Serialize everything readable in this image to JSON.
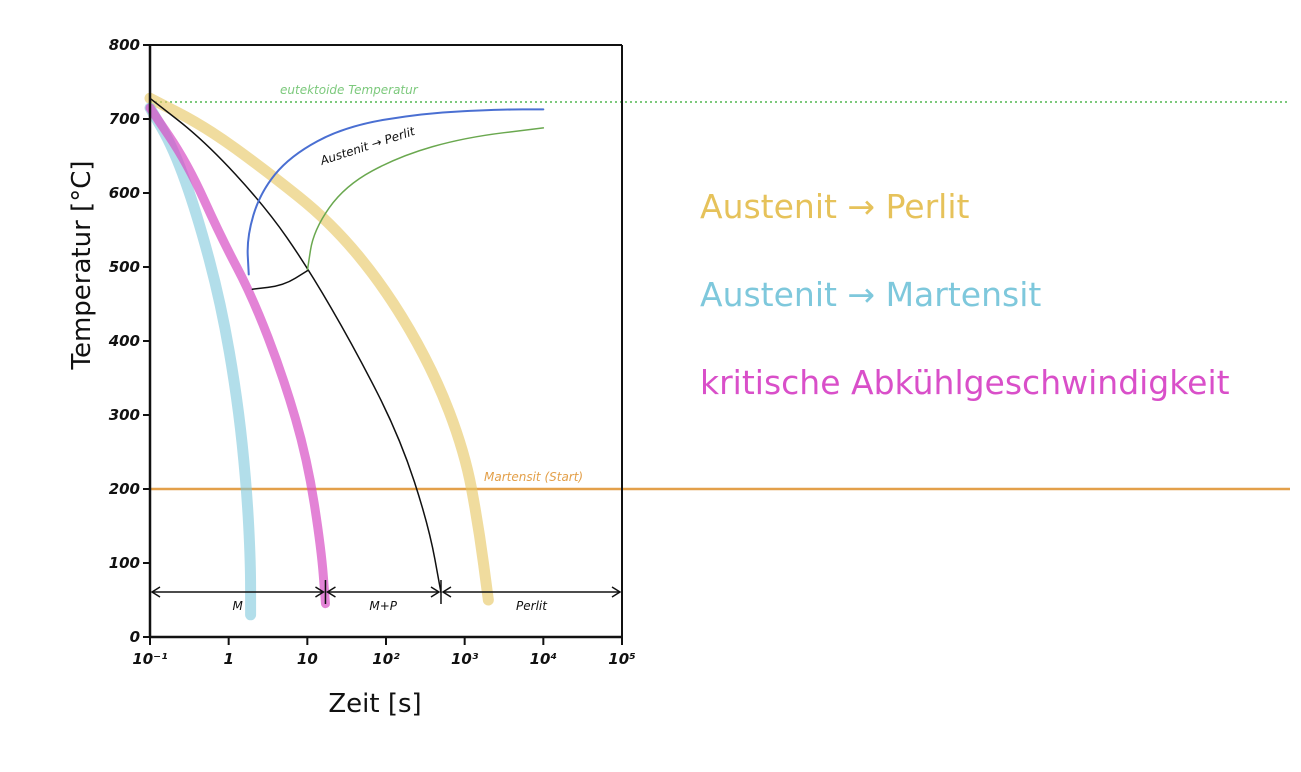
{
  "chart_data": {
    "type": "line",
    "xscale": "log",
    "xlim": [
      "10^-1",
      "10^5"
    ],
    "ylim": [
      0,
      800
    ],
    "xlabel": "Zeit [s]",
    "ylabel": "Temperatur [°C]",
    "x_ticks": [
      {
        "value": 0.1,
        "label": "10⁻¹"
      },
      {
        "value": 1,
        "label": "1"
      },
      {
        "value": 10,
        "label": "10"
      },
      {
        "value": 100,
        "label": "10²"
      },
      {
        "value": 1000,
        "label": "10³"
      },
      {
        "value": 10000,
        "label": "10⁴"
      },
      {
        "value": 100000,
        "label": "10⁵"
      }
    ],
    "y_ticks": [
      {
        "value": 0,
        "label": "0"
      },
      {
        "value": 100,
        "label": "100"
      },
      {
        "value": 200,
        "label": "200"
      },
      {
        "value": 300,
        "label": "300"
      },
      {
        "value": 400,
        "label": "400"
      },
      {
        "value": 500,
        "label": "500"
      },
      {
        "value": 600,
        "label": "600"
      },
      {
        "value": 700,
        "label": "700"
      },
      {
        "value": 800,
        "label": "800"
      }
    ],
    "reference_lines": [
      {
        "label": "eutektoide Temperatur",
        "y": 723,
        "color": "#7cc97c",
        "style": "dotted"
      },
      {
        "label": "Martensit (Start)",
        "y": 200,
        "color": "#e3a04a",
        "style": "solid"
      }
    ],
    "series": [
      {
        "color": "#e8c96a",
        "width": 11,
        "opacity": 0.65,
        "points": [
          [
            0.1,
            728
          ],
          [
            0.5,
            690
          ],
          [
            3,
            630
          ],
          [
            20,
            560
          ],
          [
            100,
            470
          ],
          [
            400,
            360
          ],
          [
            1000,
            250
          ],
          [
            1500,
            150
          ],
          [
            2000,
            50
          ]
        ]
      },
      {
        "color": "#7ec8dc",
        "width": 11,
        "opacity": 0.6,
        "points": [
          [
            0.1,
            715
          ],
          [
            0.2,
            660
          ],
          [
            0.4,
            570
          ],
          [
            0.8,
            450
          ],
          [
            1.3,
            320
          ],
          [
            1.7,
            200
          ],
          [
            1.9,
            100
          ],
          [
            1.9,
            30
          ]
        ]
      },
      {
        "color": "#d74fc4",
        "width": 9,
        "opacity": 0.7,
        "points": [
          [
            0.1,
            715
          ],
          [
            0.3,
            640
          ],
          [
            0.8,
            540
          ],
          [
            2,
            460
          ],
          [
            5,
            350
          ],
          [
            10,
            240
          ],
          [
            15,
            120
          ],
          [
            17,
            45
          ]
        ]
      },
      {
        "color": "#111111",
        "width": 1.5,
        "opacity": 1,
        "points": [
          [
            0.1,
            728
          ],
          [
            0.5,
            670
          ],
          [
            3,
            580
          ],
          [
            10,
            500
          ],
          [
            40,
            390
          ],
          [
            150,
            270
          ],
          [
            350,
            150
          ],
          [
            500,
            60
          ]
        ]
      },
      {
        "color": "#4a6fd2",
        "width": 2,
        "opacity": 1,
        "points": [
          [
            1.8,
            490
          ],
          [
            1.7,
            540
          ],
          [
            2.5,
            600
          ],
          [
            6,
            650
          ],
          [
            30,
            690
          ],
          [
            300,
            708
          ],
          [
            3000,
            713
          ],
          [
            10000,
            713
          ]
        ]
      },
      {
        "color": "#6aa84f",
        "width": 1.5,
        "opacity": 1,
        "points": [
          [
            10,
            495
          ],
          [
            12,
            550
          ],
          [
            30,
            610
          ],
          [
            150,
            650
          ],
          [
            1000,
            675
          ],
          [
            10000,
            688
          ]
        ]
      },
      {
        "color": "#111111",
        "width": 1.5,
        "opacity": 1,
        "points": [
          [
            2,
            470
          ],
          [
            5,
            475
          ],
          [
            10,
            495
          ]
        ]
      }
    ],
    "regions": [
      {
        "label": "M",
        "from": 0.1,
        "to": 17
      },
      {
        "label": "M+P",
        "from": 17,
        "to": 500
      },
      {
        "label": "Perlit",
        "from": 500,
        "to": 100000
      }
    ],
    "annotations": [
      {
        "text": "Austenit → Perlit",
        "color": "#111111"
      }
    ]
  },
  "legend": {
    "items": [
      {
        "text": "Austenit → Perlit",
        "color": "#e6c25a"
      },
      {
        "text": "Austenit → Martensit",
        "color": "#7ec8dc"
      },
      {
        "text": "kritische Abkühlgeschwindigkeit",
        "color": "#d94fc9"
      }
    ]
  }
}
